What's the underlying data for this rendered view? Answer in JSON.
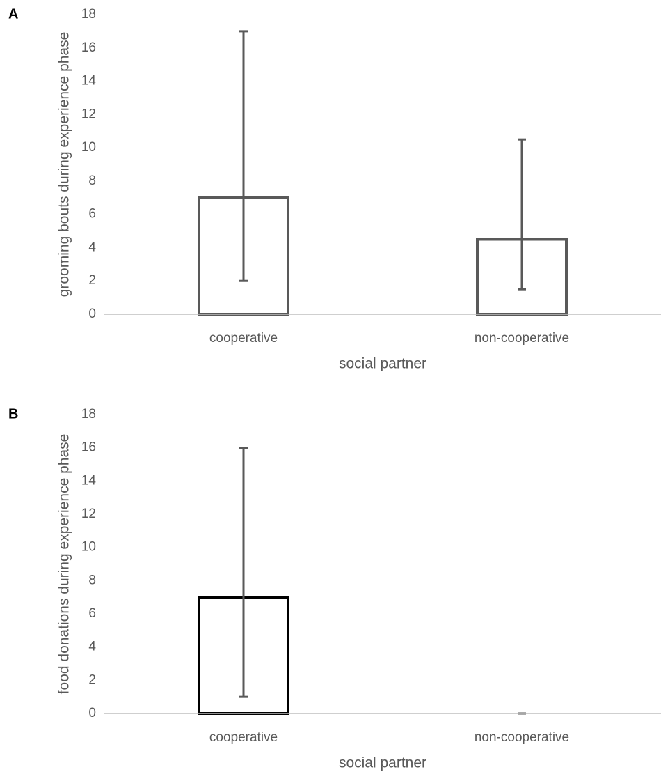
{
  "chart_data": [
    {
      "type": "bar",
      "panel_label": "A",
      "categories": [
        "cooperative",
        "non-cooperative"
      ],
      "values": [
        7,
        4.5
      ],
      "error_lower": [
        2,
        1.5
      ],
      "error_upper": [
        17,
        10.5
      ],
      "color": "#595959",
      "error_color": "#595959",
      "ylim": [
        0,
        18
      ],
      "yticks": [
        0,
        2,
        4,
        6,
        8,
        10,
        12,
        14,
        16,
        18
      ],
      "y_label": "grooming bouts during experience phase",
      "x_label": "social partner"
    },
    {
      "type": "bar",
      "panel_label": "B",
      "categories": [
        "cooperative",
        "non-cooperative"
      ],
      "values": [
        7,
        0
      ],
      "error_lower": [
        1,
        0
      ],
      "error_upper": [
        16,
        0
      ],
      "color": "#000000",
      "error_color": "#595959",
      "ylim": [
        0,
        18
      ],
      "yticks": [
        0,
        2,
        4,
        6,
        8,
        10,
        12,
        14,
        16,
        18
      ],
      "y_label": "food donations during experience phase",
      "x_label": "social partner"
    }
  ]
}
